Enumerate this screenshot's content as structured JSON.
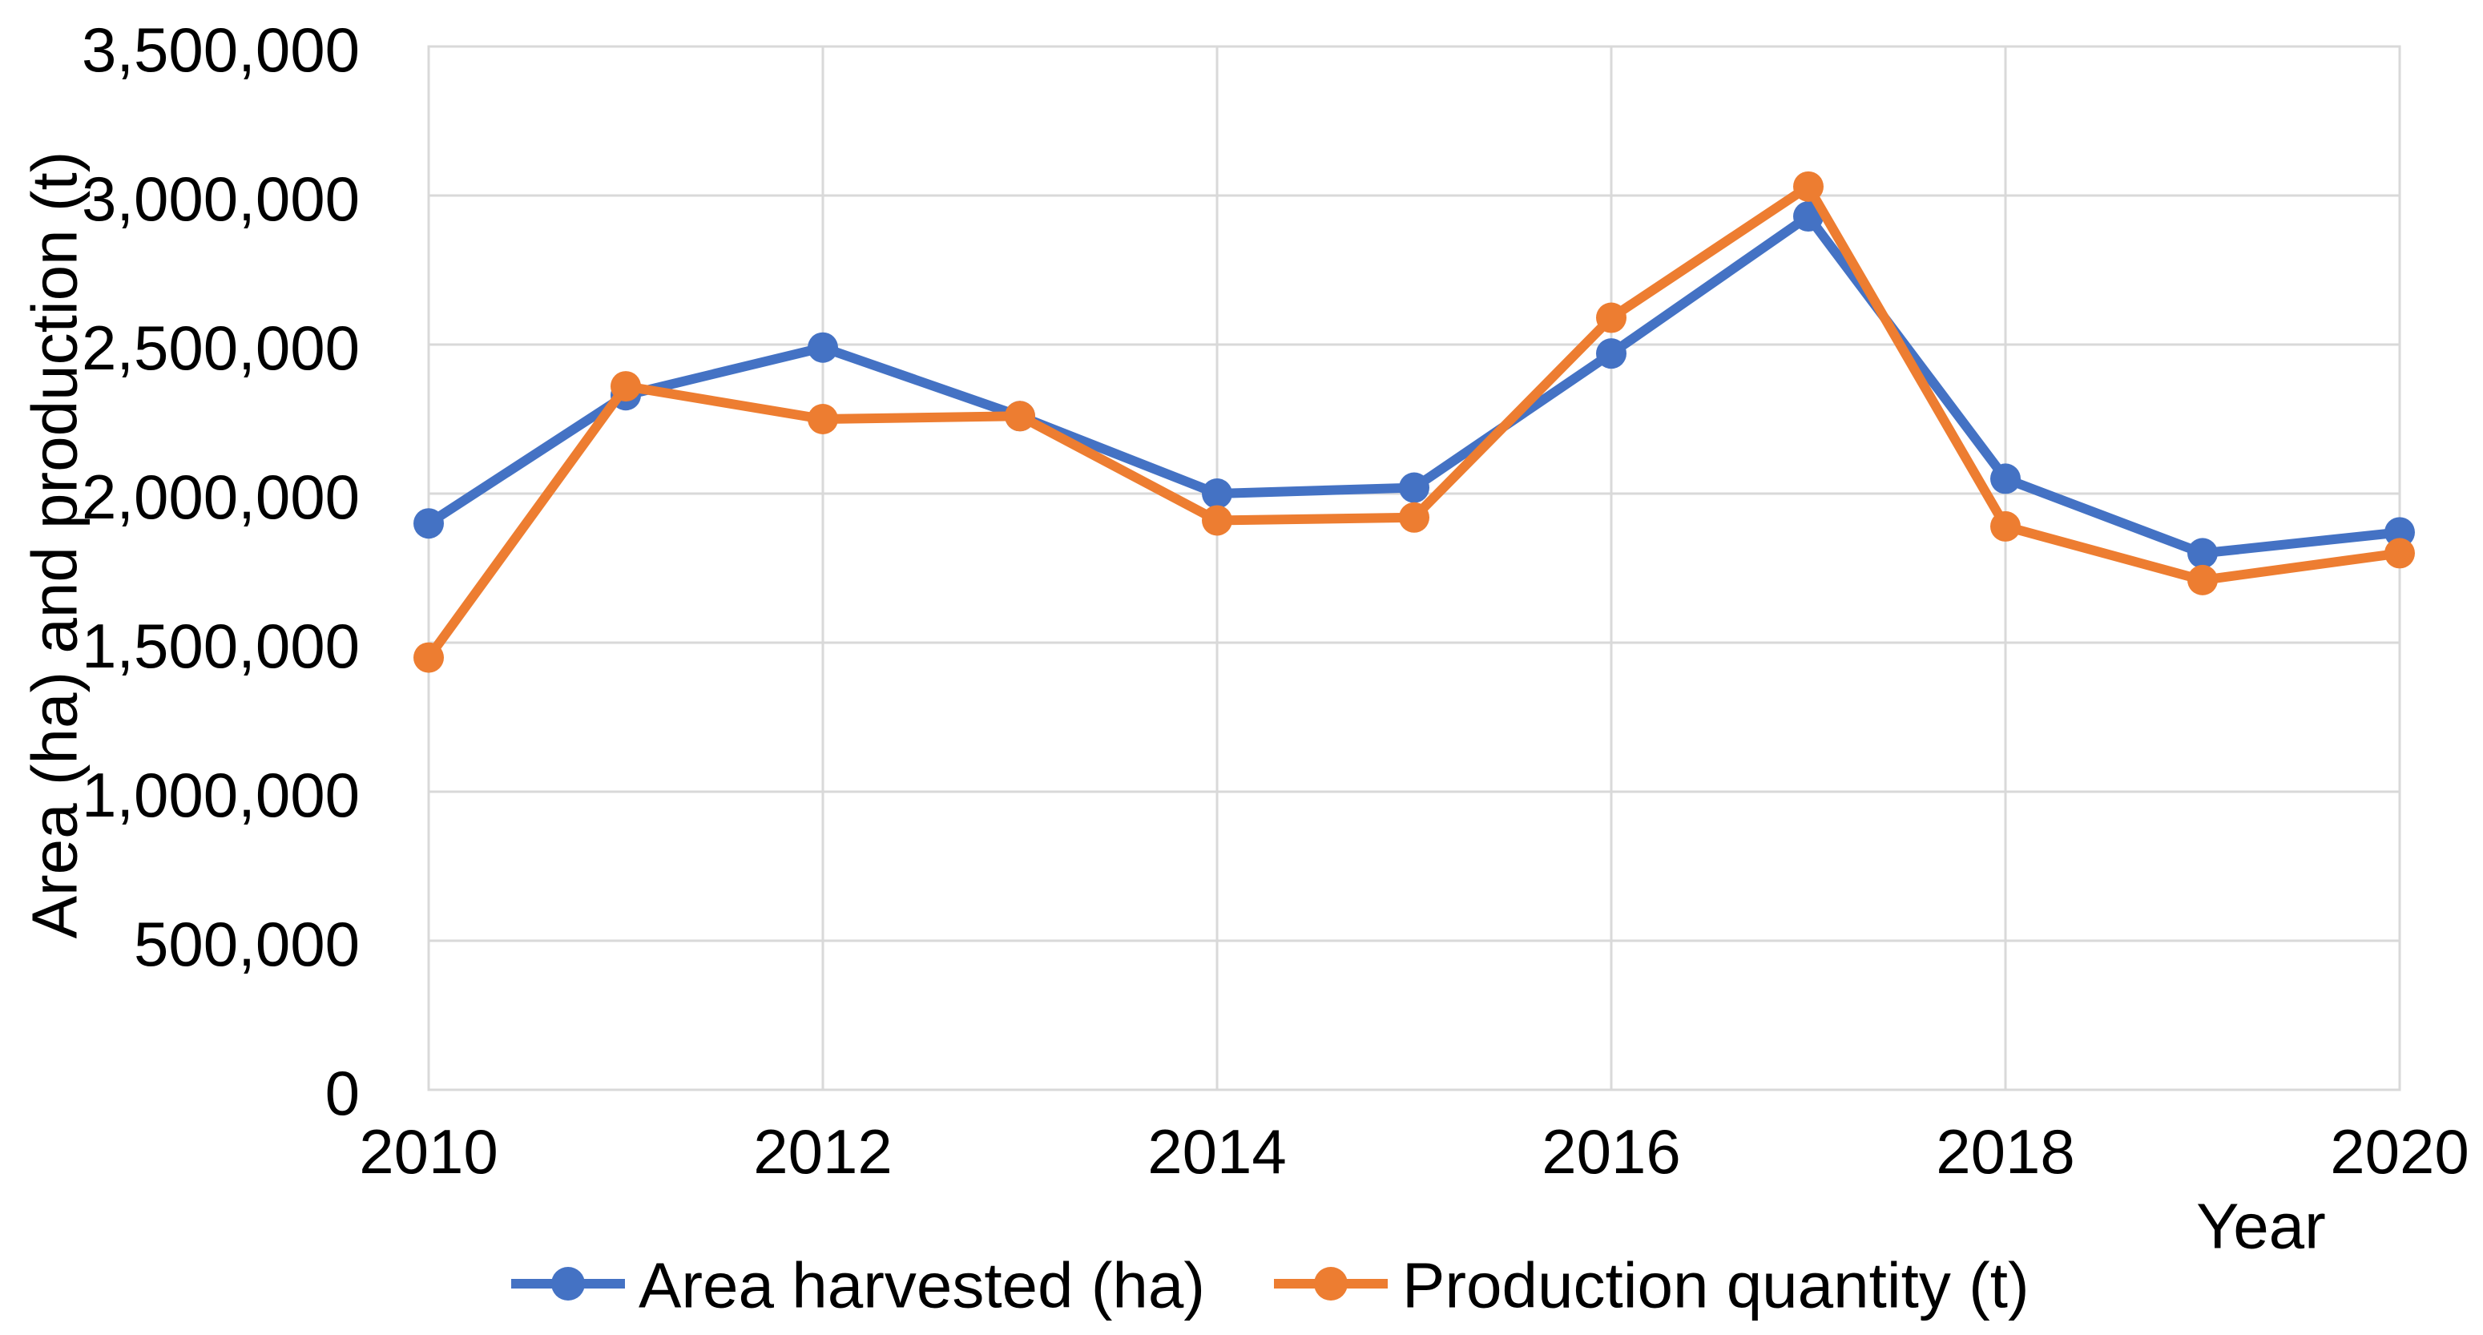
{
  "chart_data": {
    "type": "line",
    "title": "",
    "xlabel": "Year",
    "ylabel": "Area (ha) and production (t)",
    "x": [
      2010,
      2011,
      2012,
      2013,
      2014,
      2015,
      2016,
      2017,
      2018,
      2019,
      2020
    ],
    "xticks": [
      2010,
      2012,
      2014,
      2016,
      2018,
      2020
    ],
    "ylim": [
      0,
      3500000
    ],
    "ytick_step": 500000,
    "grid": true,
    "legend_position": "bottom",
    "colors": {
      "series_blue": "#4472C4",
      "series_orange": "#ED7D31",
      "gridline": "#D9D9D9",
      "text": "#000000",
      "background": "#FFFFFF"
    },
    "series": [
      {
        "name": "Area harvested (ha)",
        "color": "#4472C4",
        "values": [
          1900000,
          2330000,
          2490000,
          2260000,
          2000000,
          2020000,
          2470000,
          2930000,
          2050000,
          1800000,
          1870000
        ]
      },
      {
        "name": "Production quantity (t)",
        "color": "#ED7D31",
        "values": [
          1450000,
          2360000,
          2250000,
          2260000,
          1910000,
          1920000,
          2590000,
          3030000,
          1890000,
          1710000,
          1800000
        ]
      }
    ]
  }
}
